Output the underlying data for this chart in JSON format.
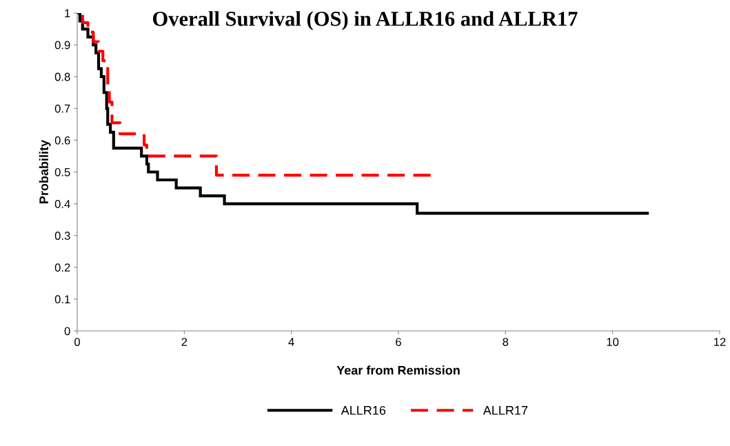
{
  "chart_data": {
    "type": "step",
    "title": "Overall Survival (OS) in ALLR16 and ALLR17",
    "xlabel": "Year from Remission",
    "ylabel": "Probability",
    "xlim": [
      0,
      12
    ],
    "xticks": [
      0,
      2,
      4,
      6,
      8,
      10,
      12
    ],
    "ylim": [
      0,
      1
    ],
    "yticks": [
      0,
      0.1,
      0.2,
      0.3,
      0.4,
      0.5,
      0.6,
      0.7,
      0.8,
      0.9,
      1
    ],
    "grid": false,
    "legend": "bottom",
    "marker": "none",
    "series": [
      {
        "name": "ALLR16",
        "color": "#000000",
        "line_style": "solid",
        "x": [
          0,
          0.05,
          0.1,
          0.2,
          0.3,
          0.35,
          0.4,
          0.45,
          0.5,
          0.55,
          0.57,
          0.62,
          0.68,
          1.2,
          1.3,
          1.33,
          1.5,
          1.85,
          2.3,
          2.75,
          6.35,
          10.65
        ],
        "values": [
          1,
          0.975,
          0.95,
          0.925,
          0.9,
          0.875,
          0.825,
          0.8,
          0.75,
          0.7,
          0.65,
          0.625,
          0.575,
          0.55,
          0.525,
          0.5,
          0.475,
          0.45,
          0.425,
          0.4,
          0.37,
          0.37
        ]
      },
      {
        "name": "ALLR17",
        "color": "#ff0000",
        "line_style": "dashed",
        "x": [
          0,
          0.1,
          0.2,
          0.3,
          0.4,
          0.48,
          0.57,
          0.6,
          0.65,
          0.8,
          1.25,
          1.3,
          2.6,
          6.6
        ],
        "values": [
          1,
          0.97,
          0.94,
          0.91,
          0.88,
          0.85,
          0.76,
          0.72,
          0.655,
          0.62,
          0.585,
          0.55,
          0.49,
          0.49
        ]
      }
    ]
  }
}
